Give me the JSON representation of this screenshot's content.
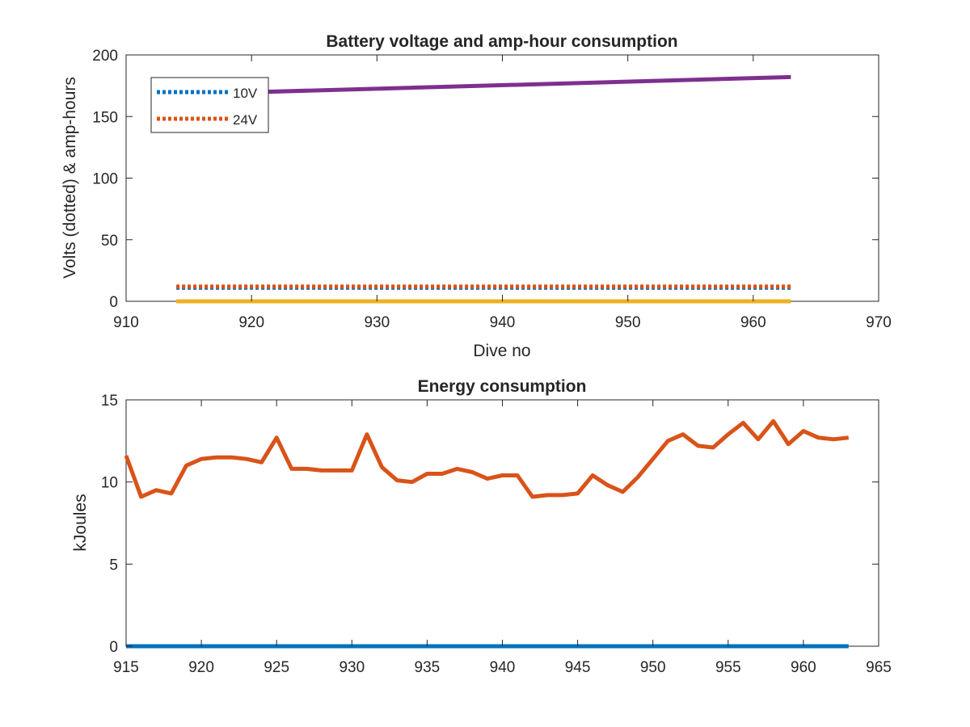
{
  "chart_data": [
    {
      "type": "line",
      "title": "Battery voltage and amp-hour consumption",
      "xlabel": "Dive no",
      "ylabel": "Volts (dotted) & amp-hours",
      "xlim": [
        910,
        970
      ],
      "ylim": [
        0,
        200
      ],
      "xticks": [
        "910",
        "920",
        "930",
        "940",
        "950",
        "960",
        "970"
      ],
      "yticks": [
        "0",
        "50",
        "100",
        "150",
        "200"
      ],
      "grid": false,
      "legend": {
        "placement": "top-left"
      },
      "series": [
        {
          "name": "10V",
          "style": "dotted",
          "color": "#0072BD",
          "x": [
            914,
            963
          ],
          "y": [
            11,
            11
          ]
        },
        {
          "name": "24V",
          "style": "dotted",
          "color": "#D95319",
          "x": [
            914,
            963
          ],
          "y": [
            12,
            12
          ]
        },
        {
          "style": "solid",
          "color": "#EDB120",
          "x": [
            914,
            963
          ],
          "y": [
            0,
            0
          ]
        },
        {
          "style": "solid",
          "color": "#7E2F8E",
          "x": [
            914,
            963
          ],
          "y": [
            168,
            182
          ]
        }
      ]
    },
    {
      "type": "line",
      "title": "Energy consumption",
      "xlabel": "",
      "ylabel": "kJoules",
      "xlim": [
        915,
        965
      ],
      "ylim": [
        0,
        15
      ],
      "xticks": [
        "915",
        "920",
        "925",
        "930",
        "935",
        "940",
        "945",
        "950",
        "955",
        "960",
        "965"
      ],
      "yticks": [
        "0",
        "5",
        "10",
        "15"
      ],
      "grid": false,
      "series": [
        {
          "style": "solid",
          "color": "#D95319",
          "x": [
            915,
            916,
            917,
            918,
            919,
            920,
            921,
            922,
            923,
            924,
            925,
            926,
            927,
            928,
            929,
            930,
            931,
            932,
            933,
            934,
            935,
            936,
            937,
            938,
            939,
            940,
            941,
            942,
            943,
            944,
            945,
            946,
            947,
            948,
            949,
            950,
            951,
            952,
            953,
            954,
            955,
            956,
            957,
            958,
            959,
            960,
            961,
            962,
            963
          ],
          "y": [
            11.6,
            9.1,
            9.5,
            9.3,
            11.0,
            11.4,
            11.5,
            11.5,
            11.4,
            11.2,
            12.7,
            10.8,
            10.8,
            10.7,
            10.7,
            10.7,
            12.9,
            10.9,
            10.1,
            10.0,
            10.5,
            10.5,
            10.8,
            10.6,
            10.2,
            10.4,
            10.4,
            9.1,
            9.2,
            9.2,
            9.3,
            10.4,
            9.8,
            9.4,
            10.3,
            11.4,
            12.5,
            12.9,
            12.2,
            12.1,
            12.9,
            13.6,
            12.6,
            13.7,
            12.3,
            13.1,
            12.7,
            12.6,
            12.7
          ]
        },
        {
          "style": "solid",
          "color": "#0072BD",
          "x": [
            915,
            963
          ],
          "y": [
            0,
            0
          ]
        }
      ]
    }
  ]
}
